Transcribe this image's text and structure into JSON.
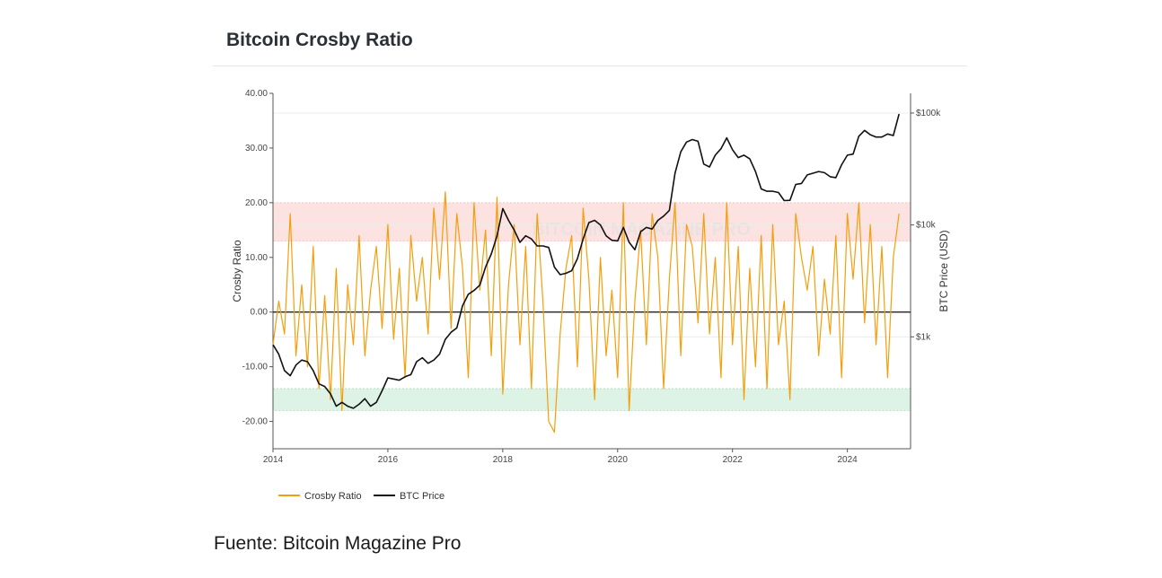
{
  "title": "Bitcoin Crosby Ratio",
  "source": "Fuente: Bitcoin Magazine Pro",
  "watermark": "BITCOIN MAGAZINE PRO",
  "colors": {
    "ratio": "#f59e0b",
    "price": "#111111",
    "overbought_band": "#fde2e2",
    "oversold_band": "#ddf3e6",
    "zero_line": "#222222"
  },
  "chart_data": {
    "type": "line",
    "title": "Bitcoin Crosby Ratio",
    "xlabel": "",
    "ylabel_left": "Crosby Ratio",
    "ylabel_right": "BTC Price (USD)",
    "x_range": [
      2014.0,
      2025.1
    ],
    "ylim_left": [
      -25,
      40
    ],
    "ylim_right_log": [
      100,
      150000
    ],
    "y_scale_right": "log",
    "grid": true,
    "legend_position": "bottom-left",
    "x_ticks": [
      "2014",
      "2016",
      "2018",
      "2020",
      "2022",
      "2024"
    ],
    "y_ticks_left": [
      "40.00",
      "30.00",
      "20.00",
      "10.00",
      "0.00",
      "-10.00",
      "-20.00"
    ],
    "y_ticks_right": [
      {
        "label": "$100k",
        "value": 100000
      },
      {
        "label": "$10k",
        "value": 10000
      },
      {
        "label": "$1k",
        "value": 1000
      }
    ],
    "bands": [
      {
        "name": "overbought",
        "from": 13,
        "to": 20
      },
      {
        "name": "oversold",
        "from": -18,
        "to": -14
      }
    ],
    "series": [
      {
        "name": "Crosby Ratio",
        "axis": "left",
        "x": [
          2014.0,
          2014.1,
          2014.2,
          2014.3,
          2014.4,
          2014.5,
          2014.6,
          2014.7,
          2014.8,
          2014.9,
          2015.0,
          2015.1,
          2015.2,
          2015.3,
          2015.4,
          2015.5,
          2015.6,
          2015.7,
          2015.8,
          2015.9,
          2016.0,
          2016.1,
          2016.2,
          2016.3,
          2016.4,
          2016.5,
          2016.6,
          2016.7,
          2016.8,
          2016.9,
          2017.0,
          2017.1,
          2017.2,
          2017.3,
          2017.4,
          2017.5,
          2017.6,
          2017.7,
          2017.8,
          2017.9,
          2018.0,
          2018.1,
          2018.2,
          2018.3,
          2018.4,
          2018.5,
          2018.6,
          2018.7,
          2018.8,
          2018.9,
          2019.0,
          2019.1,
          2019.2,
          2019.3,
          2019.4,
          2019.5,
          2019.6,
          2019.7,
          2019.8,
          2019.9,
          2020.0,
          2020.1,
          2020.2,
          2020.3,
          2020.4,
          2020.5,
          2020.6,
          2020.7,
          2020.8,
          2020.9,
          2021.0,
          2021.1,
          2021.2,
          2021.3,
          2021.4,
          2021.5,
          2021.6,
          2021.7,
          2021.8,
          2021.9,
          2022.0,
          2022.1,
          2022.2,
          2022.3,
          2022.4,
          2022.5,
          2022.6,
          2022.7,
          2022.8,
          2022.9,
          2023.0,
          2023.1,
          2023.2,
          2023.3,
          2023.4,
          2023.5,
          2023.6,
          2023.7,
          2023.8,
          2023.9,
          2024.0,
          2024.1,
          2024.2,
          2024.3,
          2024.4,
          2024.5,
          2024.6,
          2024.7,
          2024.8,
          2024.9
        ],
        "values": [
          -6,
          2,
          -4,
          18,
          -8,
          5,
          -10,
          12,
          -14,
          3,
          -16,
          8,
          -18,
          5,
          -6,
          14,
          -8,
          4,
          12,
          -3,
          16,
          -5,
          8,
          -12,
          14,
          2,
          10,
          -4,
          19,
          6,
          22,
          -3,
          18,
          8,
          -12,
          20,
          4,
          15,
          -8,
          21,
          -15,
          5,
          16,
          -6,
          12,
          -14,
          18,
          2,
          -20,
          -22,
          -4,
          8,
          14,
          -10,
          19,
          6,
          -16,
          10,
          -8,
          4,
          -12,
          20,
          -18,
          2,
          15,
          -6,
          18,
          10,
          -14,
          6,
          20,
          -8,
          16,
          12,
          -2,
          18,
          -4,
          10,
          -12,
          20,
          -6,
          12,
          -16,
          8,
          -10,
          14,
          -14,
          16,
          -6,
          2,
          -16,
          18,
          10,
          4,
          12,
          -8,
          6,
          -4,
          14,
          -12,
          18,
          6,
          20,
          -2,
          16,
          -6,
          12,
          -12,
          10,
          18
        ]
      },
      {
        "name": "BTC Price",
        "axis": "right",
        "x": [
          2014.0,
          2014.1,
          2014.2,
          2014.3,
          2014.4,
          2014.5,
          2014.6,
          2014.7,
          2014.8,
          2014.9,
          2015.0,
          2015.1,
          2015.2,
          2015.3,
          2015.4,
          2015.5,
          2015.6,
          2015.7,
          2015.8,
          2015.9,
          2016.0,
          2016.1,
          2016.2,
          2016.3,
          2016.4,
          2016.5,
          2016.6,
          2016.7,
          2016.8,
          2016.9,
          2017.0,
          2017.1,
          2017.2,
          2017.3,
          2017.4,
          2017.5,
          2017.6,
          2017.7,
          2017.8,
          2017.9,
          2018.0,
          2018.1,
          2018.2,
          2018.3,
          2018.4,
          2018.5,
          2018.6,
          2018.7,
          2018.8,
          2018.9,
          2019.0,
          2019.1,
          2019.2,
          2019.3,
          2019.4,
          2019.5,
          2019.6,
          2019.7,
          2019.8,
          2019.9,
          2020.0,
          2020.1,
          2020.2,
          2020.3,
          2020.4,
          2020.5,
          2020.6,
          2020.7,
          2020.8,
          2020.9,
          2021.0,
          2021.1,
          2021.2,
          2021.3,
          2021.4,
          2021.5,
          2021.6,
          2021.7,
          2021.8,
          2021.9,
          2022.0,
          2022.1,
          2022.2,
          2022.3,
          2022.4,
          2022.5,
          2022.6,
          2022.7,
          2022.8,
          2022.9,
          2023.0,
          2023.1,
          2023.2,
          2023.3,
          2023.4,
          2023.5,
          2023.6,
          2023.7,
          2023.8,
          2023.9,
          2024.0,
          2024.1,
          2024.2,
          2024.3,
          2024.4,
          2024.5,
          2024.6,
          2024.7,
          2024.8,
          2024.9
        ],
        "values": [
          850,
          700,
          500,
          450,
          560,
          620,
          600,
          500,
          380,
          360,
          310,
          240,
          260,
          240,
          230,
          250,
          280,
          240,
          260,
          330,
          430,
          420,
          410,
          440,
          460,
          600,
          650,
          580,
          620,
          700,
          950,
          1100,
          1200,
          1900,
          2400,
          2600,
          2900,
          4200,
          5500,
          8000,
          14000,
          11000,
          9000,
          7000,
          8000,
          7500,
          6500,
          6500,
          6300,
          4200,
          3600,
          3700,
          3900,
          5000,
          7500,
          10500,
          11000,
          10000,
          8000,
          7300,
          7200,
          9500,
          7000,
          6000,
          8700,
          9500,
          9200,
          11000,
          12000,
          13500,
          29000,
          45000,
          55000,
          58000,
          56000,
          35000,
          33000,
          42000,
          48000,
          60000,
          47000,
          40000,
          42000,
          39000,
          30000,
          21000,
          20000,
          20000,
          19500,
          16500,
          16600,
          23000,
          23500,
          28000,
          29000,
          30000,
          29300,
          27000,
          26500,
          34500,
          42000,
          43000,
          62000,
          70000,
          64000,
          61000,
          61000,
          65000,
          63000,
          98000
        ]
      }
    ]
  },
  "legend": {
    "items": [
      {
        "label": "Crosby Ratio",
        "color": "#f59e0b"
      },
      {
        "label": "BTC Price",
        "color": "#111111"
      }
    ]
  }
}
